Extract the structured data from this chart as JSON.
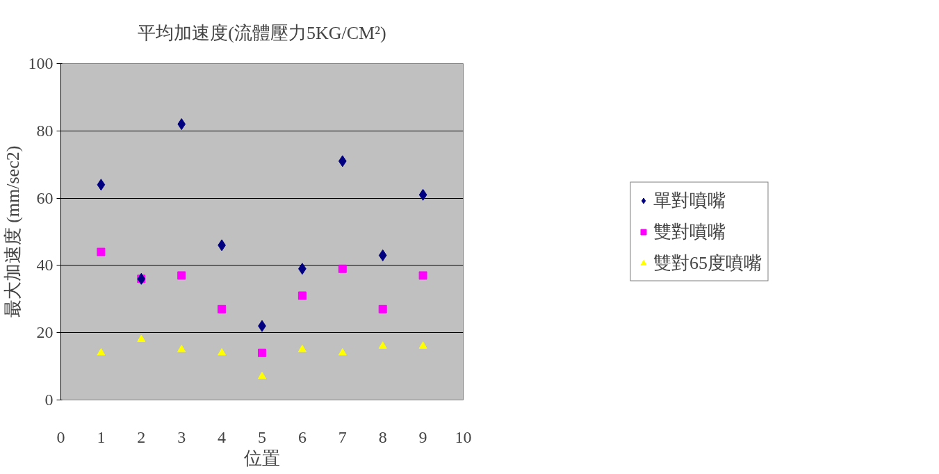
{
  "chart_data": {
    "type": "scatter",
    "title": "平均加速度(流體壓力5KG/CM²)",
    "xlabel": "位置",
    "ylabel": "最大加速度 (mm/sec2)",
    "x": [
      1,
      2,
      3,
      4,
      5,
      6,
      7,
      8,
      9
    ],
    "series": [
      {
        "name": "單對噴嘴",
        "color": "#000080",
        "marker": "diamond",
        "values": [
          64,
          36,
          82,
          46,
          22,
          39,
          71,
          43,
          61
        ]
      },
      {
        "name": "雙對噴嘴",
        "color": "#ff00ff",
        "marker": "square",
        "values": [
          44,
          36,
          37,
          27,
          14,
          31,
          39,
          27,
          37
        ]
      },
      {
        "name": "雙對65度噴嘴",
        "color": "#ffff00",
        "marker": "triangle",
        "values": [
          14,
          18,
          15,
          14,
          7,
          15,
          14,
          16,
          16
        ]
      }
    ],
    "xlim": [
      0,
      10
    ],
    "xticks": [
      0,
      1,
      2,
      3,
      4,
      5,
      6,
      7,
      8,
      9,
      10
    ],
    "ylim": [
      0,
      100
    ],
    "yticks": [
      0,
      20,
      40,
      60,
      80,
      100
    ],
    "grid": "y",
    "legend": "right"
  }
}
